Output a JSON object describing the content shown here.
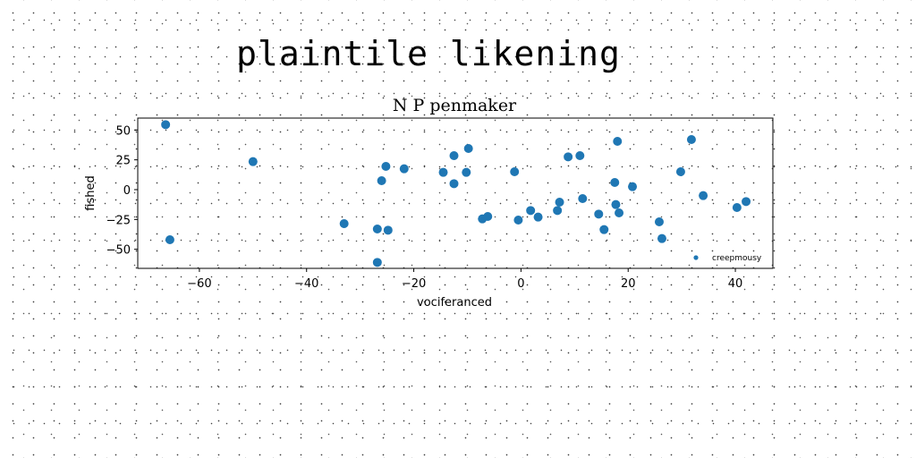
{
  "suptitle": "plaintile likening",
  "chart_data": {
    "type": "scatter",
    "title": "N P penmaker",
    "xlabel": "vociferanced",
    "ylabel": "fished",
    "xlim": [
      -71.5,
      47
    ],
    "ylim": [
      -66,
      60
    ],
    "xticks": [
      -60,
      -40,
      -20,
      0,
      20,
      40
    ],
    "yticks": [
      50,
      25,
      0,
      -25,
      -50
    ],
    "grid": false,
    "legend_position": "lower-right",
    "series": [
      {
        "name": "creepmousy",
        "color": "#1f77b4",
        "points": [
          [
            -66.3,
            54.5
          ],
          [
            -65.5,
            -42.0
          ],
          [
            -50.0,
            23.5
          ],
          [
            -33.0,
            -28.5
          ],
          [
            -26.8,
            -33.0
          ],
          [
            -26.8,
            -61.0
          ],
          [
            -26.0,
            7.5
          ],
          [
            -25.2,
            19.5
          ],
          [
            -24.8,
            -34.0
          ],
          [
            -21.8,
            17.5
          ],
          [
            -14.5,
            14.5
          ],
          [
            -12.5,
            28.5
          ],
          [
            -12.5,
            5.0
          ],
          [
            -10.2,
            14.5
          ],
          [
            -9.8,
            34.5
          ],
          [
            -7.2,
            -24.5
          ],
          [
            -6.2,
            -22.5
          ],
          [
            -1.2,
            15.0
          ],
          [
            -0.5,
            -25.5
          ],
          [
            1.8,
            -17.5
          ],
          [
            3.2,
            -23.0
          ],
          [
            6.8,
            -17.5
          ],
          [
            7.2,
            -10.5
          ],
          [
            8.8,
            27.5
          ],
          [
            11.0,
            28.5
          ],
          [
            11.5,
            -7.5
          ],
          [
            14.5,
            -20.5
          ],
          [
            15.5,
            -33.5
          ],
          [
            17.5,
            6.0
          ],
          [
            17.7,
            -12.5
          ],
          [
            18.0,
            40.5
          ],
          [
            18.3,
            -19.5
          ],
          [
            20.8,
            2.5
          ],
          [
            25.8,
            -27.0
          ],
          [
            26.3,
            -41.0
          ],
          [
            29.8,
            15.0
          ],
          [
            31.8,
            42.0
          ],
          [
            34.0,
            -5.0
          ],
          [
            40.3,
            -15.0
          ],
          [
            42.0,
            -10.0
          ]
        ]
      }
    ]
  }
}
